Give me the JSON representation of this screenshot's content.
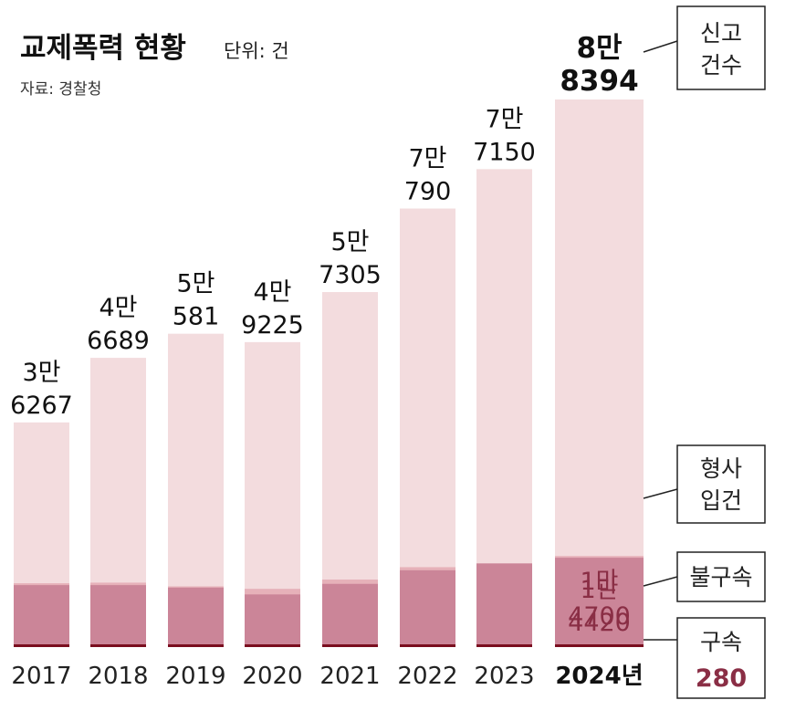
{
  "title": "교제폭력 현황",
  "unit": "단위: 건",
  "source": "자료: 경찰청",
  "colors": {
    "reports": "#f3dcde",
    "indictments": "#e6b1b9",
    "non_detention": "#cb8598",
    "detention": "#7a0e1f",
    "accent_text": "#8a2e45"
  },
  "chart_data": {
    "type": "bar",
    "stacked": true,
    "categories": [
      "2017",
      "2018",
      "2019",
      "2020",
      "2021",
      "2022",
      "2023",
      "2024년"
    ],
    "series": [
      {
        "name": "신고건수",
        "values": [
          36267,
          46689,
          50581,
          49225,
          57305,
          70790,
          77150,
          88394
        ]
      },
      {
        "name": "형사입건",
        "values": [
          10300,
          10400,
          9800,
          9400,
          10900,
          12900,
          13500,
          14700
        ]
      },
      {
        "name": "불구속",
        "values": [
          10000,
          10000,
          9600,
          8500,
          10200,
          12400,
          13500,
          14420
        ]
      },
      {
        "name": "구속",
        "values": [
          300,
          300,
          300,
          300,
          300,
          300,
          300,
          280
        ]
      }
    ],
    "report_labels": [
      [
        "3만",
        "6267"
      ],
      [
        "4만",
        "6689"
      ],
      [
        "5만",
        "581"
      ],
      [
        "4만",
        "9225"
      ],
      [
        "5만",
        "7305"
      ],
      [
        "7만",
        "790"
      ],
      [
        "7만",
        "7150"
      ],
      [
        "8만",
        "8394"
      ]
    ],
    "highlight_labels": {
      "indictments": [
        "1만",
        "4700"
      ],
      "non_detention": [
        "1만",
        "4420"
      ],
      "detention": "280"
    },
    "legend": {
      "reports": [
        "신고",
        "건수"
      ],
      "indictments": [
        "형사",
        "입건"
      ],
      "non_detention": "불구속",
      "detention": "구속"
    }
  }
}
